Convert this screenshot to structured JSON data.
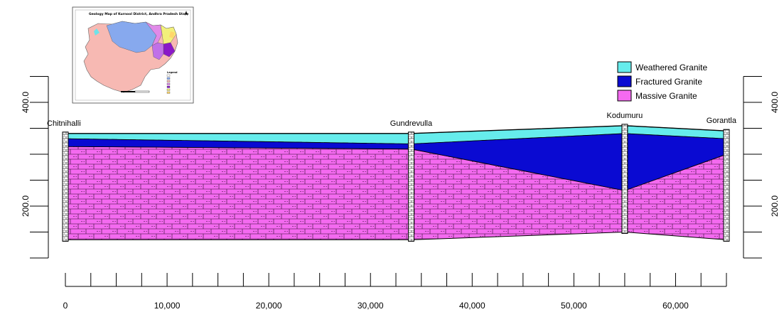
{
  "inset_map": {
    "title": "Geology Map of Kurnool District, Andhra Pradesh State",
    "legend_heading": "Legend"
  },
  "legend": {
    "items": [
      {
        "label": "Weathered Granite",
        "color": "#66ecec"
      },
      {
        "label": "Fractured Granite",
        "color": "#0a0ad2"
      },
      {
        "label": "Massive Granite",
        "color": "#f46af0"
      }
    ]
  },
  "colors": {
    "weathered": "#66ecec",
    "fractured": "#0a0ad2",
    "massive": "#f46af0",
    "brick_line": "#1a0a1a",
    "outline": "#000000"
  },
  "wells": [
    {
      "name": "Chitnihalli",
      "distance": 0
    },
    {
      "name": "Gundrevulla",
      "distance": 34000
    },
    {
      "name": "Kodumuru",
      "distance": 55000
    },
    {
      "name": "Gorantla",
      "distance": 65000
    }
  ],
  "x_axis": {
    "ticks": [
      {
        "value": 0,
        "label": "0"
      },
      {
        "value": 10000,
        "label": "10,000"
      },
      {
        "value": 20000,
        "label": "20,000"
      },
      {
        "value": 30000,
        "label": "30,000"
      },
      {
        "value": 40000,
        "label": "40,000"
      },
      {
        "value": 50000,
        "label": "50,000"
      },
      {
        "value": 60000,
        "label": "60,000"
      }
    ],
    "minor_step": 2500,
    "range": [
      0,
      65000
    ]
  },
  "y_axis": {
    "labels": [
      {
        "value": 400,
        "label": "400.0"
      },
      {
        "value": 200,
        "label": "200.0"
      }
    ],
    "tick_step": 50,
    "range": [
      100,
      450
    ]
  },
  "profile": {
    "top_surface": [
      [
        0,
        340
      ],
      [
        34000,
        340
      ],
      [
        55000,
        355
      ],
      [
        65000,
        345
      ]
    ],
    "weathered_base": [
      [
        0,
        330
      ],
      [
        34000,
        320
      ],
      [
        55000,
        340
      ],
      [
        65000,
        330
      ]
    ],
    "fractured_base": [
      [
        0,
        315
      ],
      [
        34000,
        310
      ],
      [
        55000,
        230
      ],
      [
        65000,
        300
      ]
    ],
    "bottom": [
      [
        0,
        135
      ],
      [
        34000,
        135
      ],
      [
        55000,
        150
      ],
      [
        65000,
        135
      ]
    ]
  }
}
